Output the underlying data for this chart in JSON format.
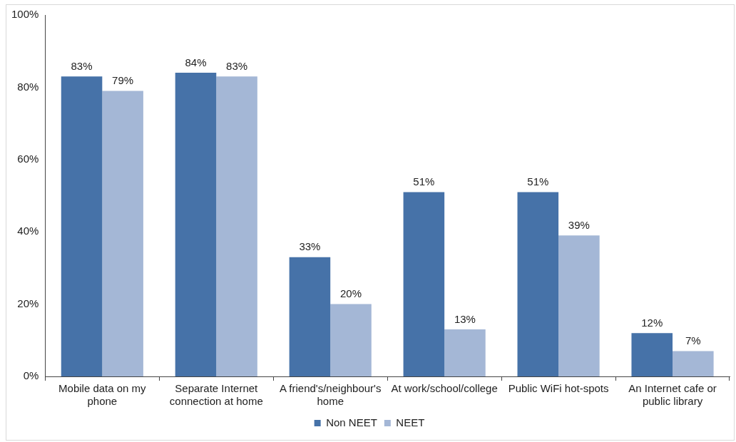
{
  "chart_data": {
    "type": "bar",
    "categories": [
      "Mobile data on my phone",
      "Separate Internet connection at home",
      "A friend's/neighbour's home",
      "At work/school/college",
      "Public WiFi hot-spots",
      "An Internet cafe or public library"
    ],
    "series": [
      {
        "name": "Non NEET",
        "color": "#4672a8",
        "values": [
          83,
          84,
          33,
          51,
          51,
          12
        ],
        "value_labels": [
          "83%",
          "84%",
          "33%",
          "51%",
          "51%",
          "12%"
        ]
      },
      {
        "name": "NEET",
        "color": "#a4b7d6",
        "values": [
          79,
          83,
          20,
          13,
          39,
          7
        ],
        "value_labels": [
          "79%",
          "83%",
          "20%",
          "13%",
          "39%",
          "7%"
        ]
      }
    ],
    "ylim": [
      0,
      100
    ],
    "yticks": [
      {
        "value": 0,
        "label": "0%"
      },
      {
        "value": 20,
        "label": "20%"
      },
      {
        "value": 40,
        "label": "40%"
      },
      {
        "value": 60,
        "label": "60%"
      },
      {
        "value": 80,
        "label": "80%"
      },
      {
        "value": 100,
        "label": "100%"
      }
    ],
    "grid": false,
    "legend": "bottom"
  }
}
